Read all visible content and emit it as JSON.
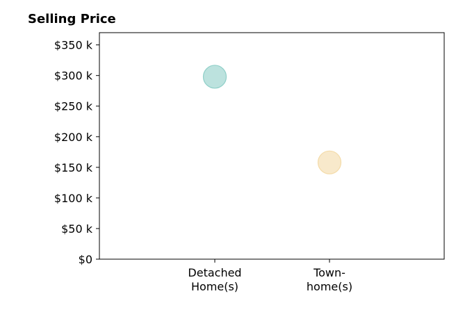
{
  "chart_data": {
    "type": "scatter",
    "title": "Selling Price",
    "xlabel": "",
    "ylabel": "",
    "categories": [
      [
        "Detached",
        "Home(s)"
      ],
      [
        "Town-",
        "home(s)"
      ]
    ],
    "points": [
      {
        "category": 0,
        "value": 298000,
        "color": "#8fcfc8"
      },
      {
        "category": 1,
        "value": 158000,
        "color": "#f4dba8"
      }
    ],
    "ylim": [
      0,
      370000
    ],
    "yticks": [
      {
        "value": 0,
        "label": "$0"
      },
      {
        "value": 50000,
        "label": "$50 k"
      },
      {
        "value": 100000,
        "label": "$100 k"
      },
      {
        "value": 150000,
        "label": "$150 k"
      },
      {
        "value": 200000,
        "label": "$200 k"
      },
      {
        "value": 250000,
        "label": "$250 k"
      },
      {
        "value": 300000,
        "label": "$300 k"
      },
      {
        "value": 350000,
        "label": "$350 k"
      }
    ],
    "grid": false,
    "legend": "none"
  }
}
